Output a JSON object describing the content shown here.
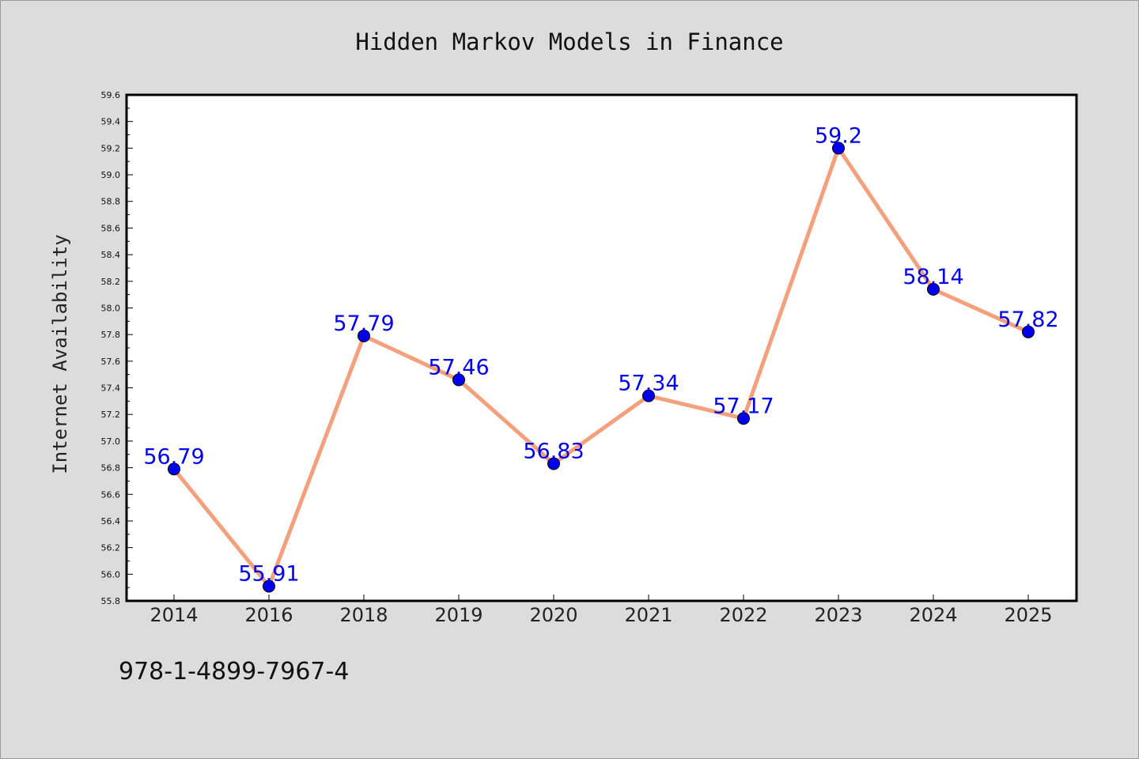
{
  "chart_data": {
    "type": "line",
    "title": "Hidden Markov Models in Finance",
    "xlabel": "",
    "ylabel": "Internet Availability",
    "categories": [
      "2014",
      "2016",
      "2018",
      "2019",
      "2020",
      "2021",
      "2022",
      "2023",
      "2024",
      "2025"
    ],
    "values": [
      56.79,
      55.91,
      57.79,
      57.46,
      56.83,
      57.34,
      57.17,
      59.2,
      58.14,
      57.82
    ],
    "data_labels": [
      "56.79",
      "55.91",
      "57.79",
      "57.46",
      "56.83",
      "57.34",
      "57.17",
      "59.2",
      "58.14",
      "57.82"
    ],
    "ylim": [
      55.8,
      59.6
    ],
    "yticks": [
      "55.8",
      "56.0",
      "56.2",
      "56.4",
      "56.6",
      "56.8",
      "57.0",
      "57.2",
      "57.4",
      "57.6",
      "57.8",
      "58.0",
      "58.2",
      "58.4",
      "58.6",
      "58.8",
      "59.0",
      "59.2",
      "59.4",
      "59.6"
    ],
    "grid": false,
    "legend": "none",
    "colors": {
      "line": "#f4a07c",
      "marker": "#0000ee",
      "label": "#0000ee",
      "background": "#dcdcdc",
      "plot_bg": "#ffffff"
    }
  },
  "footer_text": "978-1-4899-7967-4"
}
